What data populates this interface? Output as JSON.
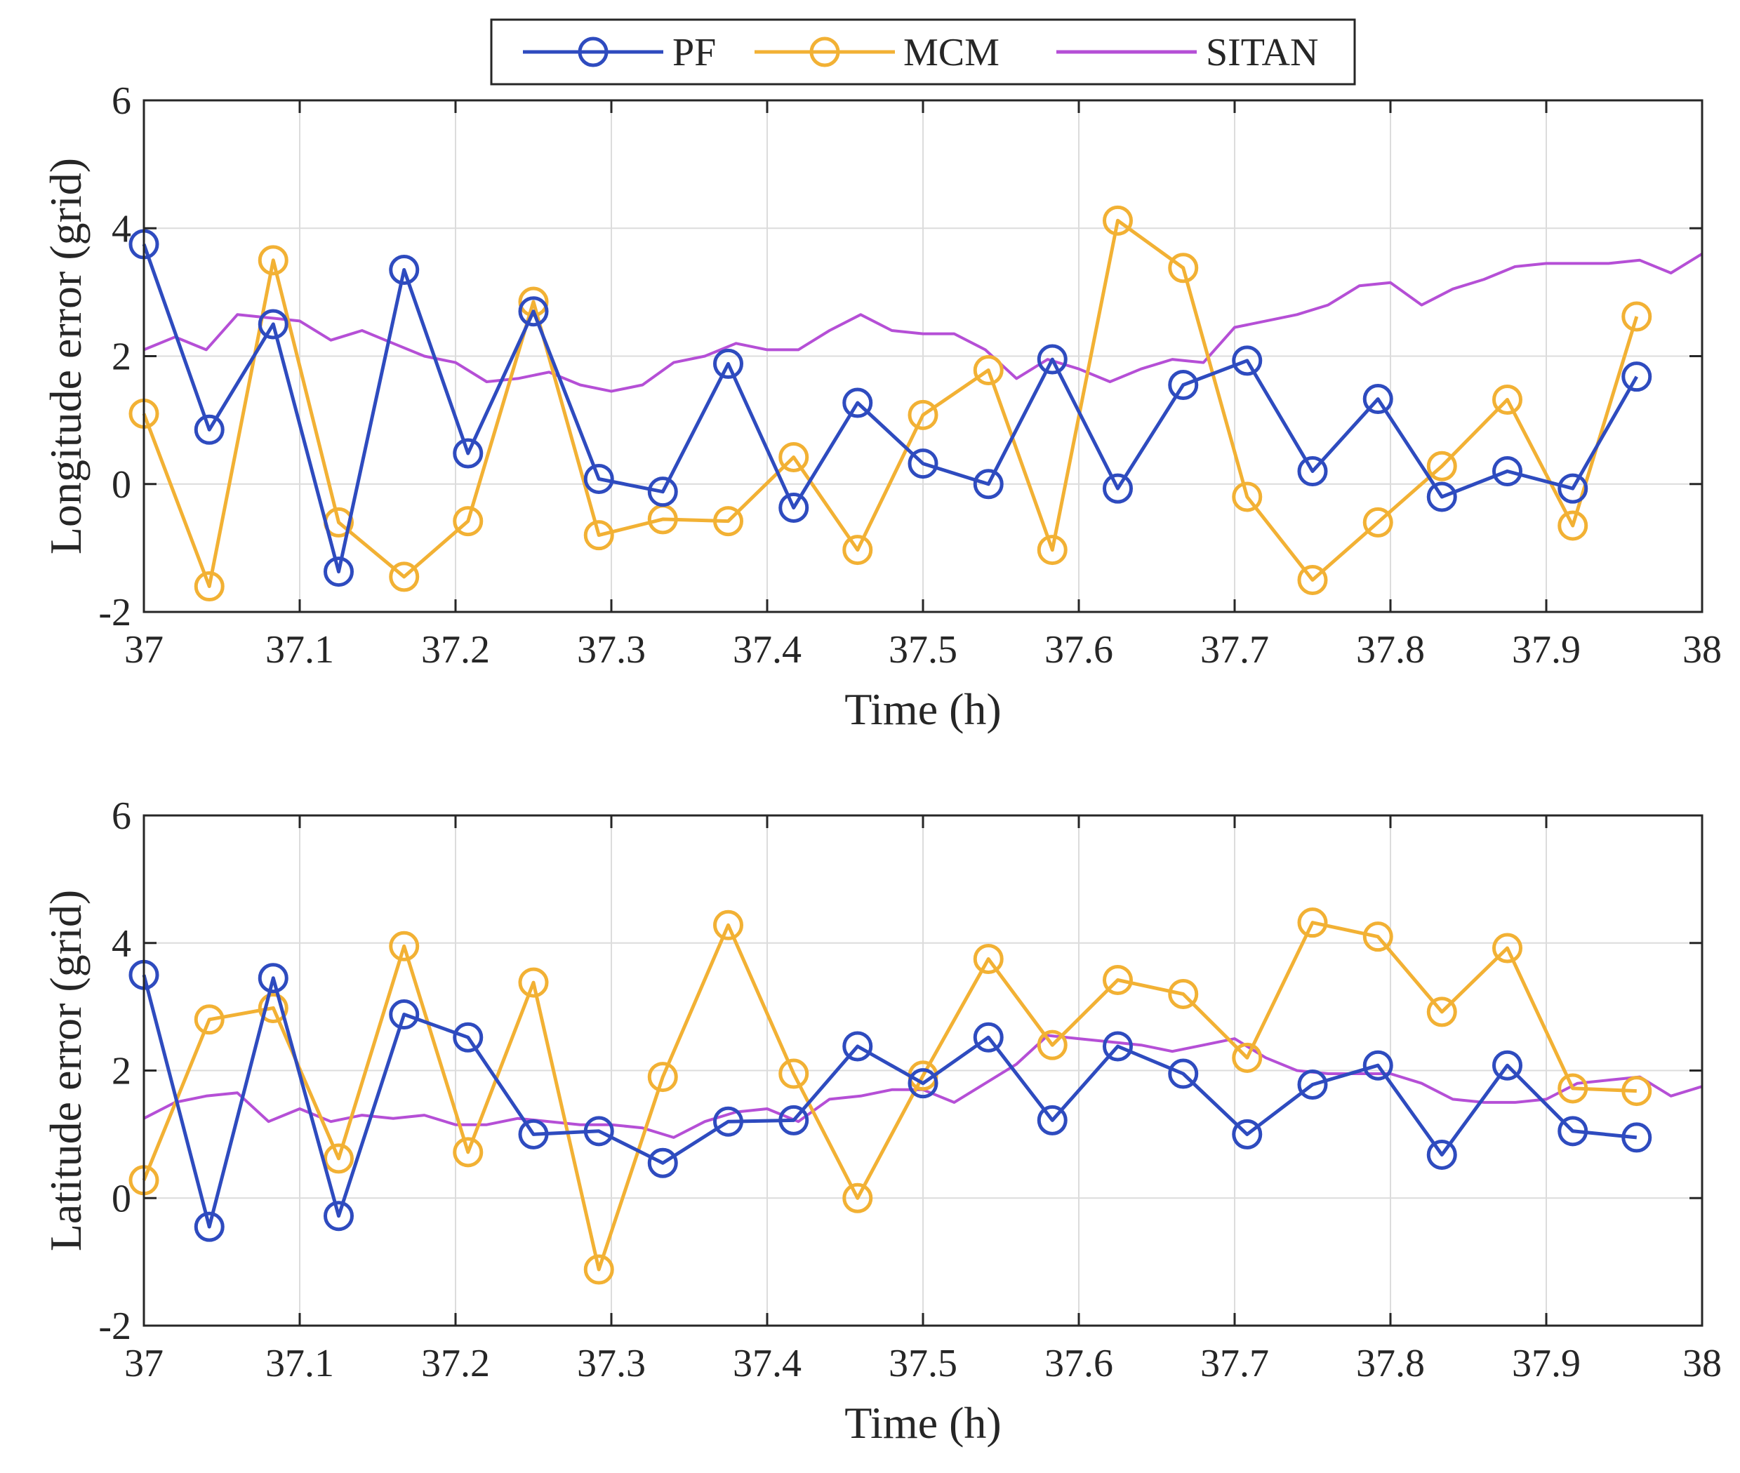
{
  "legend": {
    "entries": [
      {
        "name": "PF",
        "color": "#2e4bbf",
        "marker": "circle"
      },
      {
        "name": "MCM",
        "color": "#f2b134",
        "marker": "circle"
      },
      {
        "name": "SITAN",
        "color": "#b54fd6",
        "marker": "none"
      }
    ]
  },
  "chart_data": [
    {
      "type": "line",
      "xlabel": "Time (h)",
      "ylabel": "Longitude error (grid)",
      "xlim": [
        37,
        38
      ],
      "ylim": [
        -2,
        6
      ],
      "xticks": [
        "37",
        "37.1",
        "37.2",
        "37.3",
        "37.4",
        "37.5",
        "37.6",
        "37.7",
        "37.8",
        "37.9",
        "38"
      ],
      "yticks": [
        "-2",
        "0",
        "2",
        "4",
        "6"
      ],
      "grid": true,
      "series": [
        {
          "name": "PF",
          "x": [
            37,
            37.042,
            37.083,
            37.125,
            37.167,
            37.208,
            37.25,
            37.292,
            37.333,
            37.375,
            37.417,
            37.458,
            37.5,
            37.542,
            37.583,
            37.625,
            37.667,
            37.708,
            37.75,
            37.792,
            37.833,
            37.875,
            37.917,
            37.958
          ],
          "values": [
            3.75,
            0.85,
            2.5,
            -1.37,
            3.35,
            0.48,
            2.7,
            0.08,
            -0.12,
            1.88,
            -0.37,
            1.27,
            0.32,
            0.0,
            1.95,
            -0.07,
            1.55,
            1.93,
            0.2,
            1.33,
            -0.2,
            0.2,
            -0.07,
            1.68
          ]
        },
        {
          "name": "MCM",
          "x": [
            37,
            37.042,
            37.083,
            37.125,
            37.167,
            37.208,
            37.25,
            37.292,
            37.333,
            37.375,
            37.417,
            37.458,
            37.5,
            37.542,
            37.583,
            37.625,
            37.667,
            37.708,
            37.75,
            37.792,
            37.833,
            37.875,
            37.917,
            37.958
          ],
          "values": [
            1.1,
            -1.6,
            3.5,
            -0.6,
            -1.45,
            -0.58,
            2.85,
            -0.8,
            -0.55,
            -0.58,
            0.42,
            -1.03,
            1.08,
            1.78,
            -1.03,
            4.12,
            3.38,
            -0.2,
            -1.5,
            -0.6,
            0.28,
            1.32,
            -0.65,
            2.62
          ]
        },
        {
          "name": "SITAN",
          "x": [
            37,
            37.02,
            37.04,
            37.06,
            37.08,
            37.1,
            37.12,
            37.14,
            37.16,
            37.18,
            37.2,
            37.22,
            37.24,
            37.26,
            37.28,
            37.3,
            37.32,
            37.34,
            37.36,
            37.38,
            37.4,
            37.42,
            37.44,
            37.46,
            37.48,
            37.5,
            37.52,
            37.54,
            37.56,
            37.58,
            37.6,
            37.62,
            37.64,
            37.66,
            37.68,
            37.7,
            37.72,
            37.74,
            37.76,
            37.78,
            37.8,
            37.82,
            37.84,
            37.86,
            37.88,
            37.9,
            37.92,
            37.94,
            37.96,
            37.98,
            38
          ],
          "values": [
            2.1,
            2.3,
            2.1,
            2.65,
            2.6,
            2.55,
            2.25,
            2.4,
            2.2,
            2.0,
            1.9,
            1.6,
            1.65,
            1.75,
            1.55,
            1.45,
            1.55,
            1.9,
            2.0,
            2.2,
            2.1,
            2.1,
            2.4,
            2.65,
            2.4,
            2.35,
            2.35,
            2.1,
            1.65,
            1.95,
            1.8,
            1.6,
            1.8,
            1.95,
            1.9,
            2.45,
            2.55,
            2.65,
            2.8,
            3.1,
            3.15,
            2.8,
            3.05,
            3.2,
            3.4,
            3.45,
            3.45,
            3.45,
            3.5,
            3.3,
            3.6
          ]
        }
      ]
    },
    {
      "type": "line",
      "xlabel": "Time (h)",
      "ylabel": "Latitude error (grid)",
      "xlim": [
        37,
        38
      ],
      "ylim": [
        -2,
        6
      ],
      "xticks": [
        "37",
        "37.1",
        "37.2",
        "37.3",
        "37.4",
        "37.5",
        "37.6",
        "37.7",
        "37.8",
        "37.9",
        "38"
      ],
      "yticks": [
        "-2",
        "0",
        "2",
        "4",
        "6"
      ],
      "grid": true,
      "series": [
        {
          "name": "PF",
          "x": [
            37,
            37.042,
            37.083,
            37.125,
            37.167,
            37.208,
            37.25,
            37.292,
            37.333,
            37.375,
            37.417,
            37.458,
            37.5,
            37.542,
            37.583,
            37.625,
            37.667,
            37.708,
            37.75,
            37.792,
            37.833,
            37.875,
            37.917,
            37.958
          ],
          "values": [
            3.5,
            -0.45,
            3.45,
            -0.28,
            2.88,
            2.52,
            1.0,
            1.05,
            0.55,
            1.2,
            1.22,
            2.38,
            1.8,
            2.52,
            1.22,
            2.38,
            1.95,
            1.0,
            1.78,
            2.08,
            0.68,
            2.08,
            1.05,
            0.95
          ]
        },
        {
          "name": "MCM",
          "x": [
            37,
            37.042,
            37.083,
            37.125,
            37.167,
            37.208,
            37.25,
            37.292,
            37.333,
            37.375,
            37.417,
            37.458,
            37.5,
            37.542,
            37.583,
            37.625,
            37.667,
            37.708,
            37.75,
            37.792,
            37.833,
            37.875,
            37.917,
            37.958
          ],
          "values": [
            0.28,
            2.8,
            2.98,
            0.62,
            3.95,
            0.72,
            3.38,
            -1.12,
            1.9,
            4.28,
            1.95,
            0.0,
            1.92,
            3.75,
            2.4,
            3.42,
            3.2,
            2.2,
            4.32,
            4.1,
            2.92,
            3.92,
            1.72,
            1.68
          ]
        },
        {
          "name": "SITAN",
          "x": [
            37,
            37.02,
            37.04,
            37.06,
            37.08,
            37.1,
            37.12,
            37.14,
            37.16,
            37.18,
            37.2,
            37.22,
            37.24,
            37.26,
            37.28,
            37.3,
            37.32,
            37.34,
            37.36,
            37.38,
            37.4,
            37.42,
            37.44,
            37.46,
            37.48,
            37.5,
            37.52,
            37.54,
            37.56,
            37.58,
            37.6,
            37.62,
            37.64,
            37.66,
            37.68,
            37.7,
            37.72,
            37.74,
            37.76,
            37.78,
            37.8,
            37.82,
            37.84,
            37.86,
            37.88,
            37.9,
            37.92,
            37.94,
            37.96,
            37.98,
            38
          ],
          "values": [
            1.25,
            1.5,
            1.6,
            1.65,
            1.2,
            1.4,
            1.2,
            1.3,
            1.25,
            1.3,
            1.15,
            1.15,
            1.25,
            1.2,
            1.15,
            1.15,
            1.1,
            0.95,
            1.2,
            1.35,
            1.4,
            1.2,
            1.55,
            1.6,
            1.7,
            1.7,
            1.5,
            1.8,
            2.1,
            2.55,
            2.5,
            2.45,
            2.4,
            2.3,
            2.4,
            2.5,
            2.2,
            2.0,
            1.95,
            1.95,
            1.95,
            1.8,
            1.55,
            1.5,
            1.5,
            1.55,
            1.8,
            1.85,
            1.9,
            1.6,
            1.75
          ]
        }
      ]
    }
  ]
}
